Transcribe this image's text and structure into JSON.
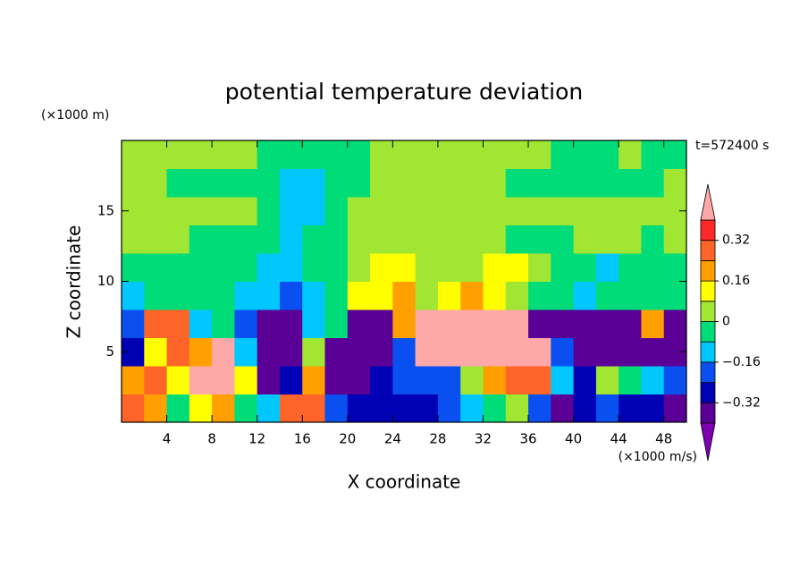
{
  "chart_data": {
    "type": "contour",
    "title": "potential temperature deviation",
    "x_label": "X coordinate",
    "y_label": "Z coordinate",
    "x_unit": "(×1000 m/s)",
    "y_unit": "(×1000 m)",
    "time_label": "t=572400 s",
    "xlim": [
      0,
      50
    ],
    "ylim": [
      0,
      20
    ],
    "xticks": [
      4,
      8,
      12,
      16,
      20,
      24,
      28,
      32,
      36,
      40,
      44,
      48
    ],
    "yticks": [
      5,
      10,
      15
    ],
    "x": [
      1,
      3,
      5,
      7,
      9,
      11,
      13,
      15,
      17,
      19,
      21,
      23,
      25,
      27,
      29,
      31,
      33,
      35,
      37,
      39,
      41,
      43,
      45,
      47,
      49
    ],
    "y": [
      1,
      3,
      5,
      7,
      9,
      11,
      13,
      15,
      17,
      19
    ],
    "z": [
      [
        0.3,
        0.2,
        -0.04,
        0.1,
        0.2,
        -0.04,
        -0.12,
        0.3,
        0.3,
        -0.2,
        -0.28,
        -0.28,
        -0.28,
        -0.28,
        -0.2,
        -0.12,
        -0.04,
        0.04,
        -0.2,
        -0.36,
        -0.28,
        -0.2,
        -0.28,
        -0.28,
        -0.36
      ],
      [
        0.2,
        0.28,
        0.1,
        0.5,
        0.5,
        0.1,
        -0.36,
        -0.28,
        0.2,
        -0.36,
        -0.36,
        -0.28,
        -0.2,
        -0.2,
        -0.2,
        0.04,
        0.2,
        0.28,
        0.28,
        -0.1,
        -0.28,
        0.04,
        -0.04,
        -0.12,
        -0.2
      ],
      [
        -0.28,
        0.1,
        0.28,
        0.2,
        0.5,
        -0.12,
        -0.36,
        -0.36,
        0.04,
        -0.36,
        -0.36,
        -0.36,
        -0.2,
        0.5,
        0.5,
        0.5,
        0.5,
        0.5,
        0.5,
        -0.2,
        -0.36,
        -0.36,
        -0.36,
        -0.36,
        -0.36
      ],
      [
        -0.2,
        0.3,
        0.3,
        -0.1,
        -0.04,
        -0.2,
        -0.36,
        -0.36,
        -0.1,
        -0.04,
        -0.36,
        -0.36,
        0.2,
        0.5,
        0.5,
        0.5,
        0.5,
        0.5,
        -0.36,
        -0.36,
        -0.36,
        -0.36,
        -0.36,
        0.2,
        -0.36
      ],
      [
        -0.1,
        -0.04,
        -0.04,
        -0.04,
        -0.04,
        -0.1,
        -0.12,
        -0.2,
        -0.1,
        -0.04,
        0.1,
        0.12,
        0.2,
        0.04,
        0.1,
        0.2,
        0.12,
        0.04,
        -0.04,
        -0.04,
        -0.1,
        -0.04,
        -0.04,
        -0.04,
        -0.04
      ],
      [
        -0.04,
        -0.04,
        -0.04,
        -0.04,
        -0.04,
        -0.04,
        -0.1,
        -0.1,
        -0.04,
        -0.04,
        0.04,
        0.1,
        0.1,
        0.04,
        0.04,
        0.04,
        0.1,
        0.1,
        0.04,
        -0.04,
        -0.04,
        -0.1,
        -0.04,
        -0.04,
        -0.04
      ],
      [
        0.04,
        0.04,
        0.04,
        -0.04,
        -0.04,
        -0.04,
        -0.04,
        -0.1,
        -0.04,
        -0.04,
        0.04,
        0.04,
        0.04,
        0.04,
        0.04,
        0.04,
        0.04,
        -0.04,
        -0.04,
        -0.04,
        0.04,
        0.04,
        0.04,
        -0.04,
        0.04
      ],
      [
        0.04,
        0.04,
        0.04,
        0.04,
        0.04,
        0.04,
        -0.04,
        -0.1,
        -0.1,
        -0.04,
        0.04,
        0.04,
        0.04,
        0.04,
        0.04,
        0.04,
        0.04,
        0.04,
        0.04,
        0.04,
        0.04,
        0.04,
        0.04,
        0.04,
        0.04
      ],
      [
        0.04,
        0.04,
        -0.04,
        -0.04,
        -0.04,
        -0.04,
        -0.04,
        -0.1,
        -0.12,
        -0.04,
        -0.04,
        0.04,
        0.04,
        0.04,
        0.04,
        0.04,
        0.04,
        -0.04,
        -0.04,
        -0.04,
        -0.04,
        -0.04,
        -0.04,
        -0.04,
        0.04
      ],
      [
        0.04,
        0.04,
        0.04,
        0.04,
        0.04,
        0.04,
        -0.04,
        -0.04,
        -0.04,
        -0.04,
        -0.04,
        0.04,
        0.04,
        0.04,
        0.04,
        0.04,
        0.04,
        0.04,
        0.04,
        -0.04,
        -0.04,
        -0.04,
        0.04,
        -0.04,
        -0.04
      ]
    ],
    "colorbar": {
      "levels": [
        -0.4,
        -0.32,
        -0.24,
        -0.16,
        -0.08,
        0,
        0.08,
        0.16,
        0.24,
        0.32,
        0.4
      ],
      "colors": [
        "#7a00b0",
        "#5a0096",
        "#0000b4",
        "#0a50f0",
        "#00c8ff",
        "#00dc78",
        "#a0e632",
        "#ffff00",
        "#ffa000",
        "#ff6428",
        "#ff2828",
        "#ffa8a8"
      ],
      "ticks": [
        {
          "value": -0.32,
          "label": "−0.32"
        },
        {
          "value": -0.16,
          "label": "−0.16"
        },
        0,
        0.16,
        0.32
      ]
    }
  }
}
